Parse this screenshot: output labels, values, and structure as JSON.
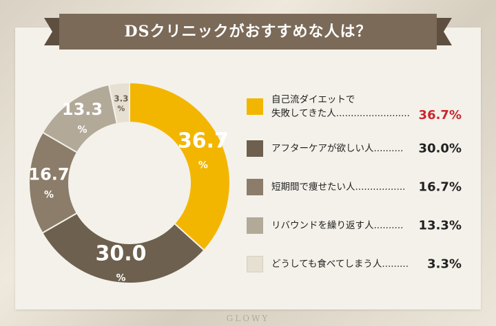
{
  "title": "DSクリニックがおすすめな人は？",
  "watermark": "GLOWY",
  "colors": {
    "banner": "#7b6a58",
    "banner_edge": "#5e4f40",
    "highlight_value": "#c8272d"
  },
  "chart_data": {
    "type": "pie",
    "style": "donut",
    "title": "",
    "slices": [
      {
        "label": "自己流ダイエットで\n失敗してきた人",
        "value": 36.7,
        "value_text": "36.7",
        "unit": "%",
        "color": "#f3b600",
        "label_color": "#ffffff",
        "leader": "........................."
      },
      {
        "label": "アフターケアが欲しい人",
        "value": 30.0,
        "value_text": "30.0",
        "unit": "%",
        "color": "#6d604e",
        "label_color": "#ffffff",
        "leader": ".........."
      },
      {
        "label": "短期間で痩せたい人",
        "value": 16.7,
        "value_text": "16.7",
        "unit": "%",
        "color": "#8b7d6a",
        "label_color": "#ffffff",
        "leader": "................."
      },
      {
        "label": "リバウンドを繰り返す人",
        "value": 13.3,
        "value_text": "13.3",
        "unit": "%",
        "color": "#b2a999",
        "label_color": "#ffffff",
        "leader": ".........."
      },
      {
        "label": "どうしても食べてしまう人",
        "value": 3.3,
        "value_text": "3.3",
        "unit": "%",
        "color": "#e6e0d3",
        "label_color": "#6d604e",
        "leader": "........."
      }
    ],
    "legend_placement": "right"
  }
}
